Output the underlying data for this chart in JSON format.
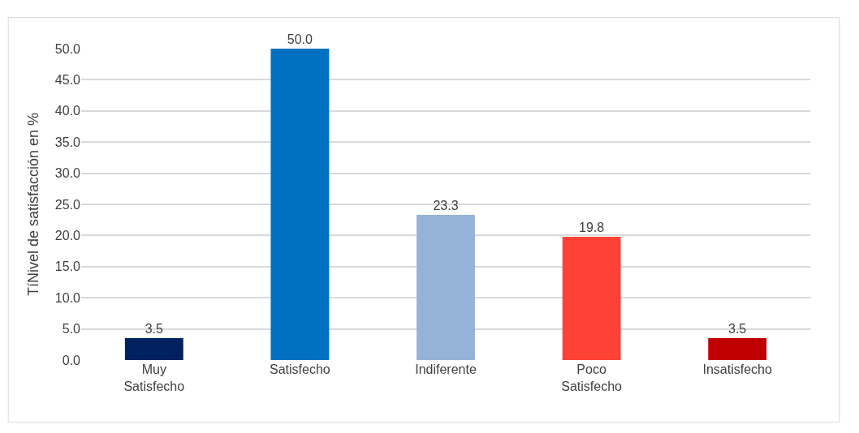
{
  "chart_data": {
    "type": "bar",
    "ylabel": "TíNivel de satisfacción en %",
    "categories": [
      "Muy Satisfecho",
      "Satisfecho",
      "Indiferente",
      "Poco Satisfecho",
      "Insatisfecho"
    ],
    "values": [
      3.5,
      50.0,
      23.3,
      19.8,
      3.5
    ],
    "colors": [
      "#002060",
      "#0070c0",
      "#95b3d7",
      "#ff4136",
      "#c00000"
    ],
    "ylim": [
      0,
      50
    ],
    "yticks": [
      {
        "value": 0,
        "label": "0.0"
      },
      {
        "value": 5,
        "label": "5.0"
      },
      {
        "value": 10,
        "label": "10.0"
      },
      {
        "value": 15,
        "label": "15.0"
      },
      {
        "value": 20,
        "label": "20.0"
      },
      {
        "value": 25,
        "label": "25.0"
      },
      {
        "value": 30,
        "label": "30.0"
      },
      {
        "value": 35,
        "label": "35.0"
      },
      {
        "value": 40,
        "label": "40.0"
      },
      {
        "value": 45,
        "label": "45.0"
      },
      {
        "value": 50,
        "label": "50.0"
      }
    ],
    "grid": "y",
    "value_labels": [
      "3.5",
      "50.0",
      "23.3",
      "19.8",
      "3.5"
    ]
  }
}
